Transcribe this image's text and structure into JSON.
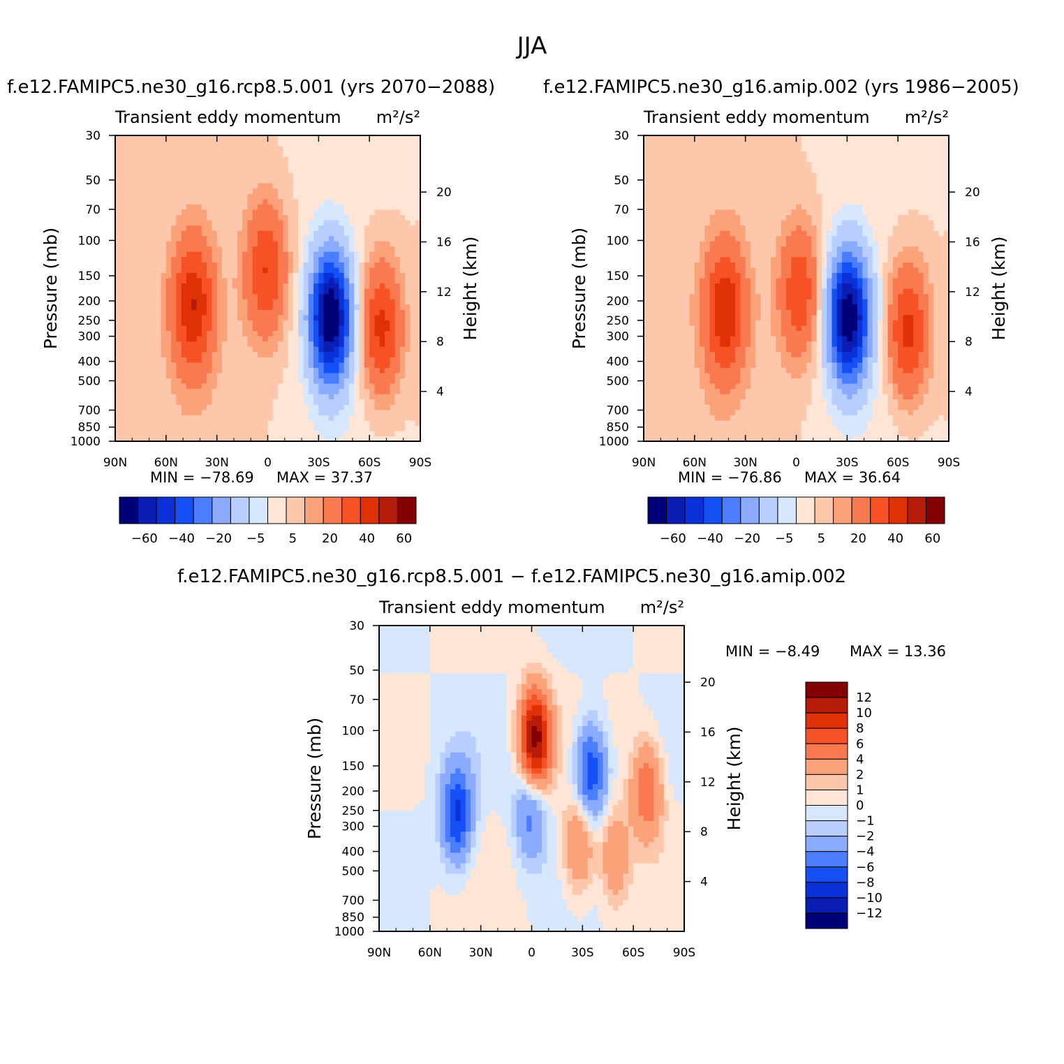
{
  "figure": {
    "title": "JJA",
    "diff_title": "f.e12.FAMIPC5.ne30_g16.rcp8.5.001 − f.e12.FAMIPC5.ne30_g16.amip.002"
  },
  "chart_data": [
    {
      "type": "heatmap",
      "case_title": "f.e12.FAMIPC5.ne30_g16.rcp8.5.001 (yrs 2070−2088)",
      "variable": "Transient eddy momentum",
      "units": "m²/s²",
      "xlabel": "",
      "ylabel": "Pressure (mb)",
      "ylabel_right": "Height (km)",
      "x_ticks": [
        "90N",
        "60N",
        "30N",
        "0",
        "30S",
        "60S",
        "90S"
      ],
      "x_range": [
        90,
        -90
      ],
      "y_ticks": [
        "30",
        "50",
        "70",
        "100",
        "150",
        "200",
        "250",
        "300",
        "400",
        "500",
        "700",
        "850",
        "1000"
      ],
      "y_range": [
        1000,
        30
      ],
      "height_ticks": [
        "20",
        "16",
        "12",
        "8",
        "4"
      ],
      "min_label": "MIN =  −78.69",
      "max_label": "MAX =   37.37",
      "min": -78.69,
      "max": 37.37,
      "features": [
        {
          "lat": 44,
          "p": 210,
          "value": 37.37
        },
        {
          "lat": 1,
          "p": 140,
          "value": 30
        },
        {
          "lat": -67,
          "p": 270,
          "value": 35
        },
        {
          "lat": -37,
          "p": 240,
          "value": -78.69
        }
      ],
      "colorbar": {
        "levels": [
          "−60",
          "−40",
          "−20",
          "−5",
          "5",
          "20",
          "40",
          "60"
        ],
        "colors": [
          "#000078",
          "#0a1eb3",
          "#0a32d8",
          "#1450f5",
          "#4b7dff",
          "#8aabff",
          "#b7ceff",
          "#d7e7fd",
          "#fee5d5",
          "#fdc7ab",
          "#fba27b",
          "#f97a50",
          "#f65225",
          "#e03106",
          "#b51c0a",
          "#830003"
        ]
      }
    },
    {
      "type": "heatmap",
      "case_title": "f.e12.FAMIPC5.ne30_g16.amip.002 (yrs 1986−2005)",
      "variable": "Transient eddy momentum",
      "units": "m²/s²",
      "xlabel": "",
      "ylabel": "Pressure (mb)",
      "ylabel_right": "Height (km)",
      "x_ticks": [
        "90N",
        "60N",
        "30N",
        "0",
        "30S",
        "60S",
        "90S"
      ],
      "x_range": [
        90,
        -90
      ],
      "y_ticks": [
        "30",
        "50",
        "70",
        "100",
        "150",
        "200",
        "250",
        "300",
        "400",
        "500",
        "700",
        "850",
        "1000"
      ],
      "y_range": [
        1000,
        30
      ],
      "height_ticks": [
        "20",
        "16",
        "12",
        "8",
        "4"
      ],
      "min_label": "MIN =  −76.86",
      "max_label": "MAX =   36.64",
      "min": -76.86,
      "max": 36.64,
      "features": [
        {
          "lat": 42,
          "p": 220,
          "value": 36.64
        },
        {
          "lat": -2,
          "p": 180,
          "value": 28
        },
        {
          "lat": -66,
          "p": 280,
          "value": 35
        },
        {
          "lat": -31,
          "p": 240,
          "value": -76.86
        }
      ],
      "colorbar": {
        "levels": [
          "−60",
          "−40",
          "−20",
          "−5",
          "5",
          "20",
          "40",
          "60"
        ],
        "colors": [
          "#000078",
          "#0a1eb3",
          "#0a32d8",
          "#1450f5",
          "#4b7dff",
          "#8aabff",
          "#b7ceff",
          "#d7e7fd",
          "#fee5d5",
          "#fdc7ab",
          "#fba27b",
          "#f97a50",
          "#f65225",
          "#e03106",
          "#b51c0a",
          "#830003"
        ]
      }
    },
    {
      "type": "heatmap",
      "case_title": "f.e12.FAMIPC5.ne30_g16.rcp8.5.001 − f.e12.FAMIPC5.ne30_g16.amip.002",
      "variable": "Transient eddy momentum",
      "units": "m²/s²",
      "xlabel": "",
      "ylabel": "Pressure (mb)",
      "ylabel_right": "Height (km)",
      "x_ticks": [
        "90N",
        "60N",
        "30N",
        "0",
        "30S",
        "60S",
        "90S"
      ],
      "x_range": [
        90,
        -90
      ],
      "y_ticks": [
        "30",
        "50",
        "70",
        "100",
        "150",
        "200",
        "250",
        "300",
        "400",
        "500",
        "700",
        "850",
        "1000"
      ],
      "y_range": [
        1000,
        30
      ],
      "height_ticks": [
        "20",
        "16",
        "12",
        "8",
        "4"
      ],
      "min_label": "MIN =   −8.49",
      "max_label": "MAX =   13.36",
      "min": -8.49,
      "max": 13.36,
      "features": [
        {
          "lat": -2,
          "p": 110,
          "value": 13.36
        },
        {
          "lat": 44,
          "p": 260,
          "value": -8.49
        },
        {
          "lat": -35,
          "p": 160,
          "value": -8
        },
        {
          "lat": 1,
          "p": 260,
          "value": -5
        },
        {
          "lat": -28,
          "p": 370,
          "value": 5
        },
        {
          "lat": -49,
          "p": 430,
          "value": 4
        },
        {
          "lat": -68,
          "p": 200,
          "value": 6
        }
      ],
      "colorbar": {
        "levels": [
          "12",
          "10",
          "8",
          "6",
          "4",
          "2",
          "1",
          "0",
          "−1",
          "−2",
          "−4",
          "−6",
          "−8",
          "−10",
          "−12"
        ],
        "colors": [
          "#830003",
          "#b51c0a",
          "#e03106",
          "#f65225",
          "#f97a50",
          "#fba27b",
          "#fdc7ab",
          "#fee5d5",
          "#d7e7fd",
          "#b7ceff",
          "#8aabff",
          "#4b7dff",
          "#1450f5",
          "#0a32d8",
          "#0a1eb3",
          "#000078"
        ]
      }
    }
  ]
}
